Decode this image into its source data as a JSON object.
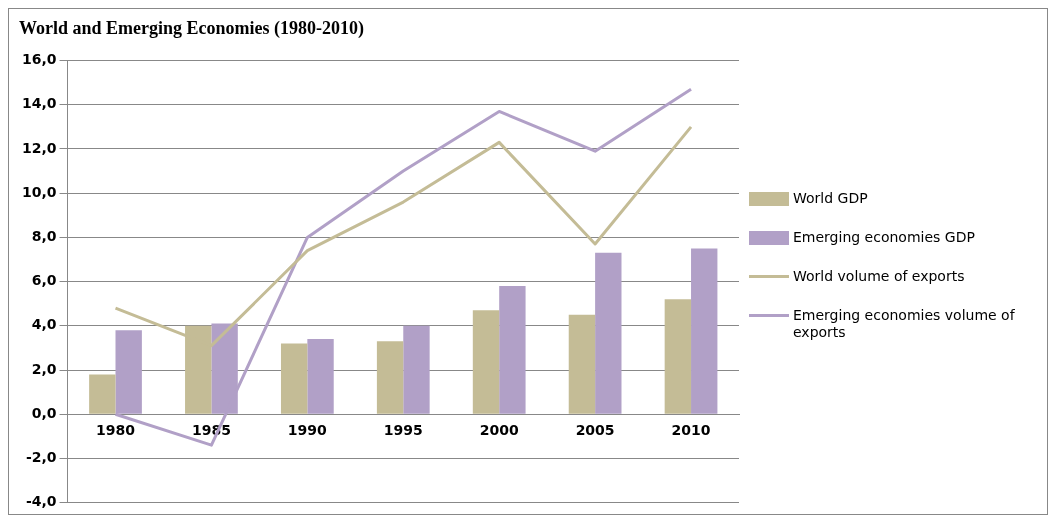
{
  "chart_data": {
    "type": "bar",
    "title": "World and Emerging Economies (1980-2010)",
    "categories": [
      "1980",
      "1985",
      "1990",
      "1995",
      "2000",
      "2005",
      "2010"
    ],
    "series": [
      {
        "name": "World GDP",
        "color": "#c4bc96",
        "values": [
          1.8,
          4.0,
          3.2,
          3.3,
          4.7,
          4.5,
          5.2
        ]
      },
      {
        "name": "Emerging economies GDP",
        "color": "#b1a0c7",
        "values": [
          3.8,
          4.1,
          3.4,
          4.0,
          5.8,
          7.3,
          7.5
        ]
      },
      {
        "name": "World volume of exports",
        "type": "line",
        "color": "#c4bc96",
        "values": [
          4.8,
          3.1,
          7.4,
          9.6,
          12.3,
          7.7,
          13.0
        ]
      },
      {
        "name": "Emerging economies volume of exports",
        "type": "line",
        "color": "#b1a0c7",
        "values": [
          0.0,
          -1.4,
          8.0,
          11.0,
          13.7,
          11.9,
          14.7
        ]
      }
    ],
    "ylim": [
      -4,
      16
    ],
    "yticks": [
      {
        "value": -4,
        "label": "-4,0"
      },
      {
        "value": -2,
        "label": "-2,0"
      },
      {
        "value": 0,
        "label": "0,0"
      },
      {
        "value": 2,
        "label": "2,0"
      },
      {
        "value": 4,
        "label": "4,0"
      },
      {
        "value": 6,
        "label": "6,0"
      },
      {
        "value": 8,
        "label": "8,0"
      },
      {
        "value": 10,
        "label": "10,0"
      },
      {
        "value": 12,
        "label": "12,0"
      },
      {
        "value": 14,
        "label": "14,0"
      },
      {
        "value": 16,
        "label": "16,0"
      }
    ],
    "grid": "y",
    "legend": "right",
    "marker": "none"
  }
}
